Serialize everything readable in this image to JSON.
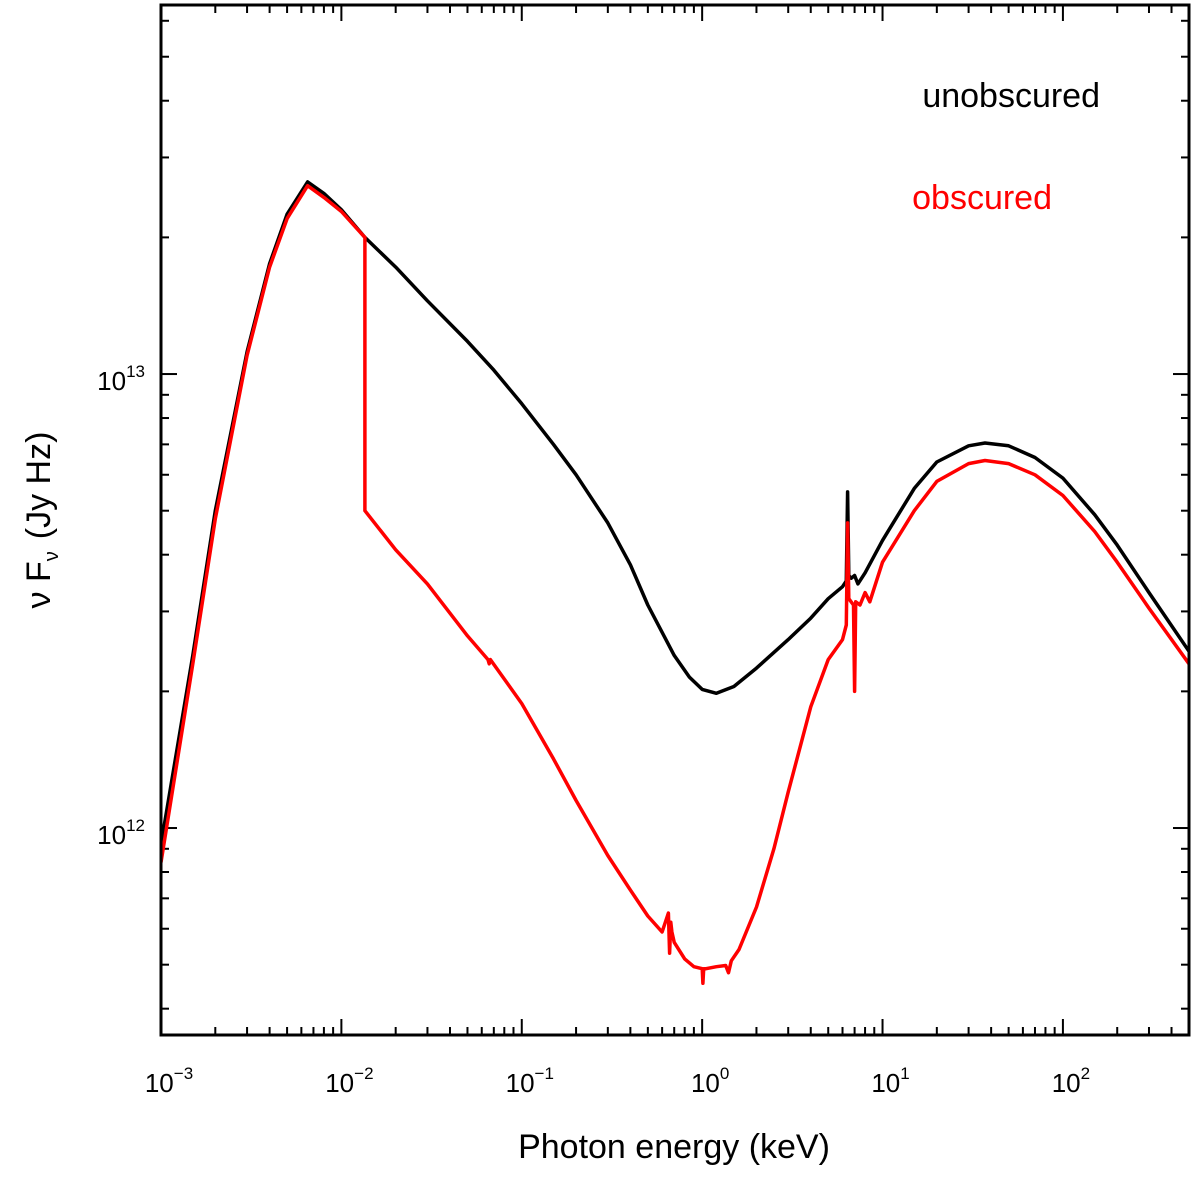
{
  "chart_data": {
    "type": "line",
    "title": "",
    "xlabel": "Photon energy (keV)",
    "ylabel": {
      "prefix": "ν F",
      "sub": "ν",
      "units": "(Jy Hz)"
    },
    "xscale": "log",
    "yscale": "log",
    "xlim": [
      0.001,
      500
    ],
    "ylim": [
      350000000000.0,
      65000000000000.0
    ],
    "legend_position": "top-right",
    "x_ticks": [
      {
        "value": 0.001,
        "base": "10",
        "exp": "−3"
      },
      {
        "value": 0.01,
        "base": "10",
        "exp": "−2"
      },
      {
        "value": 0.1,
        "base": "10",
        "exp": "−1"
      },
      {
        "value": 1,
        "base": "10",
        "exp": "0"
      },
      {
        "value": 10,
        "base": "10",
        "exp": "1"
      },
      {
        "value": 100,
        "base": "10",
        "exp": "2"
      }
    ],
    "y_ticks": [
      {
        "value": 1000000000000.0,
        "base": "10",
        "exp": "12"
      },
      {
        "value": 10000000000000.0,
        "base": "10",
        "exp": "13"
      }
    ],
    "series": [
      {
        "name": "unobscured",
        "color": "#000000",
        "x": [
          0.001,
          0.0015,
          0.002,
          0.003,
          0.004,
          0.005,
          0.0065,
          0.008,
          0.01,
          0.0135,
          0.02,
          0.03,
          0.05,
          0.07,
          0.1,
          0.15,
          0.2,
          0.3,
          0.4,
          0.5,
          0.7,
          0.85,
          1.0,
          1.2,
          1.5,
          2.0,
          3.0,
          4.0,
          5.0,
          6.0,
          6.3,
          6.4,
          6.5,
          6.7,
          7.0,
          7.3,
          8.0,
          10,
          15,
          20,
          30,
          37,
          50,
          70,
          100,
          150,
          200,
          300,
          500
        ],
        "y": [
          920000000000.0,
          2400000000000.0,
          5000000000000.0,
          11200000000000.0,
          17500000000000.0,
          22500000000000.0,
          26500000000000.0,
          25000000000000.0,
          23000000000000.0,
          20000000000000.0,
          17200000000000.0,
          14500000000000.0,
          11800000000000.0,
          10200000000000.0,
          8600000000000.0,
          7000000000000.0,
          6000000000000.0,
          4700000000000.0,
          3800000000000.0,
          3100000000000.0,
          2400000000000.0,
          2150000000000.0,
          2020000000000.0,
          1980000000000.0,
          2050000000000.0,
          2250000000000.0,
          2600000000000.0,
          2900000000000.0,
          3200000000000.0,
          3400000000000.0,
          3500000000000.0,
          5500000000000.0,
          3600000000000.0,
          3550000000000.0,
          3600000000000.0,
          3450000000000.0,
          3650000000000.0,
          4300000000000.0,
          5600000000000.0,
          6400000000000.0,
          6950000000000.0,
          7050000000000.0,
          6950000000000.0,
          6550000000000.0,
          5900000000000.0,
          4900000000000.0,
          4200000000000.0,
          3300000000000.0,
          2450000000000.0
        ]
      },
      {
        "name": "obscured",
        "color": "#ff0000",
        "x": [
          0.001,
          0.0015,
          0.002,
          0.003,
          0.004,
          0.005,
          0.0065,
          0.008,
          0.01,
          0.0135,
          0.0135,
          0.02,
          0.03,
          0.05,
          0.065,
          0.066,
          0.067,
          0.1,
          0.15,
          0.2,
          0.3,
          0.4,
          0.5,
          0.6,
          0.65,
          0.66,
          0.67,
          0.68,
          0.7,
          0.8,
          0.9,
          1.0,
          1.01,
          1.02,
          1.05,
          1.2,
          1.35,
          1.4,
          1.45,
          1.6,
          2.0,
          2.5,
          3.0,
          4.0,
          5.0,
          6.0,
          6.3,
          6.4,
          6.5,
          6.9,
          7.0,
          7.1,
          7.5,
          8.0,
          8.5,
          10,
          15,
          20,
          30,
          37,
          50,
          70,
          100,
          150,
          200,
          300,
          500
        ],
        "y": [
          840000000000.0,
          2300000000000.0,
          4800000000000.0,
          11000000000000.0,
          17200000000000.0,
          22000000000000.0,
          26000000000000.0,
          24500000000000.0,
          22800000000000.0,
          20000000000000.0,
          5000000000000.0,
          4100000000000.0,
          3450000000000.0,
          2650000000000.0,
          2350000000000.0,
          2300000000000.0,
          2350000000000.0,
          1880000000000.0,
          1420000000000.0,
          1150000000000.0,
          870000000000.0,
          730000000000.0,
          640000000000.0,
          590000000000.0,
          650000000000.0,
          530000000000.0,
          620000000000.0,
          590000000000.0,
          560000000000.0,
          515000000000.0,
          495000000000.0,
          490000000000.0,
          455000000000.0,
          490000000000.0,
          490000000000.0,
          495000000000.0,
          498000000000.0,
          480000000000.0,
          510000000000.0,
          540000000000.0,
          670000000000.0,
          900000000000.0,
          1200000000000.0,
          1850000000000.0,
          2350000000000.0,
          2600000000000.0,
          2800000000000.0,
          4700000000000.0,
          3200000000000.0,
          3100000000000.0,
          2000000000000.0,
          3150000000000.0,
          3100000000000.0,
          3300000000000.0,
          3150000000000.0,
          3850000000000.0,
          5000000000000.0,
          5800000000000.0,
          6350000000000.0,
          6450000000000.0,
          6350000000000.0,
          6000000000000.0,
          5400000000000.0,
          4500000000000.0,
          3850000000000.0,
          3050000000000.0,
          2300000000000.0
        ]
      }
    ]
  }
}
